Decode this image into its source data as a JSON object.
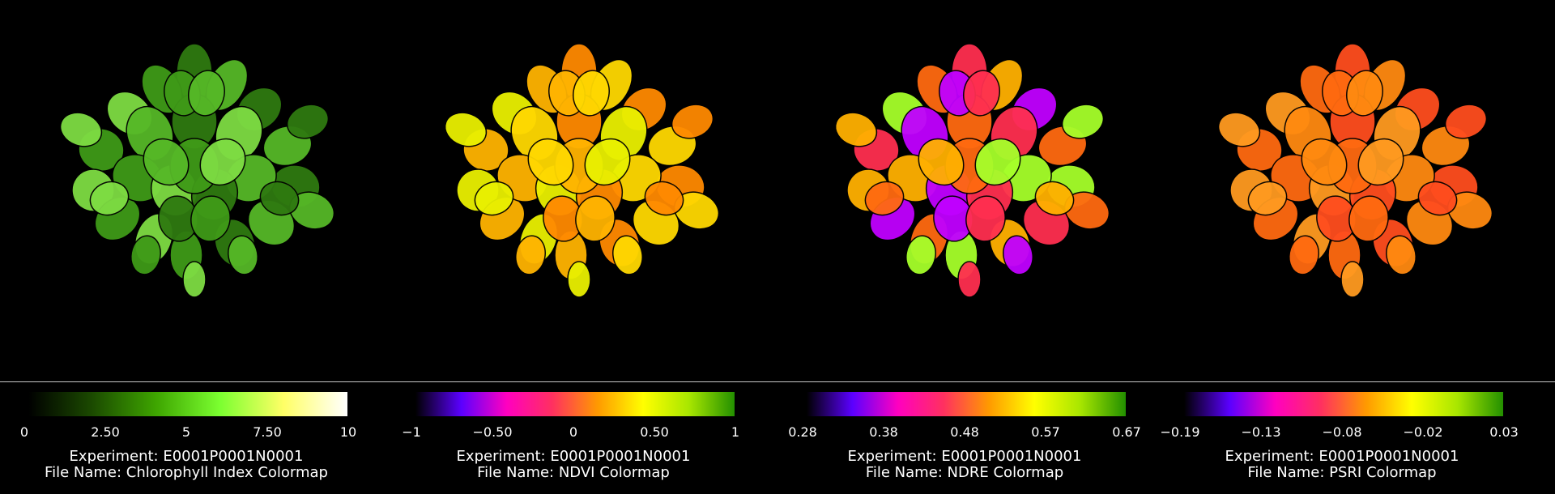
{
  "panels": [
    {
      "id": "chlorophyll",
      "colormap": [
        "#000000",
        "#1b4a00",
        "#3ea500",
        "#7bff30",
        "#ffff66",
        "#ffffff"
      ],
      "ticks": [
        "0",
        "2.50",
        "5",
        "7.50",
        "10"
      ],
      "experiment": "Experiment: E0001P0001N0001",
      "file_name": "File Name: Chlorophyll Index Colormap",
      "plant_palette": [
        "#2f7a10",
        "#3f9a18",
        "#56b827",
        "#7edc43"
      ]
    },
    {
      "id": "ndvi",
      "colormap": [
        "#000000",
        "#5a00ff",
        "#ff00c0",
        "#ff3060",
        "#ff9a00",
        "#ffff00",
        "#a8e600",
        "#239000"
      ],
      "ticks": [
        "−1",
        "−0.50",
        "0",
        "0.50",
        "1"
      ],
      "experiment": "Experiment: E0001P0001N0001",
      "file_name": "File Name: NDVI Colormap",
      "plant_palette": [
        "#ff8a00",
        "#ffb400",
        "#ffd800",
        "#e9f000"
      ]
    },
    {
      "id": "ndre",
      "colormap": [
        "#000000",
        "#5a00ff",
        "#ff00c0",
        "#ff3060",
        "#ff9a00",
        "#ffff00",
        "#a8e600",
        "#239000"
      ],
      "ticks": [
        "0.28",
        "0.38",
        "0.48",
        "0.57",
        "0.67"
      ],
      "experiment": "Experiment: E0001P0001N0001",
      "file_name": "File Name: NDRE Colormap",
      "plant_palette": [
        "#ff2f50",
        "#ff6a10",
        "#ffb000",
        "#a6ff2a",
        "#c000ff"
      ]
    },
    {
      "id": "psri",
      "colormap": [
        "#000000",
        "#5a00ff",
        "#ff00c0",
        "#ff3060",
        "#ff9a00",
        "#ffff00",
        "#a8e600",
        "#239000"
      ],
      "ticks": [
        "−0.19",
        "−0.13",
        "−0.08",
        "−0.02",
        "0.03"
      ],
      "experiment": "Experiment: E0001P0001N0001",
      "file_name": "File Name: PSRI Colormap",
      "plant_palette": [
        "#ff4d1e",
        "#ff6a10",
        "#ff8a10",
        "#ff9a20"
      ]
    }
  ]
}
